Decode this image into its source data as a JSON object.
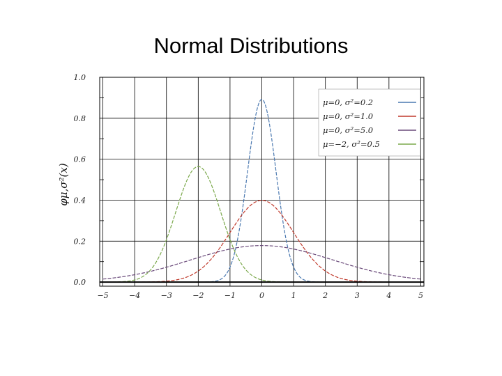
{
  "slide": {
    "title": "Normal Distributions"
  },
  "chart_data": {
    "type": "line",
    "title": "",
    "xlabel": "",
    "ylabel": "φμ,σ²(x)",
    "xlim": [
      -5.1,
      5.1
    ],
    "ylim": [
      -0.02,
      1.0
    ],
    "grid": true,
    "legend_position": "top-right",
    "x_ticks": [
      -5,
      -4,
      -3,
      -2,
      -1,
      0,
      1,
      2,
      3,
      4,
      5
    ],
    "x_tick_labels": [
      "−5",
      "−4",
      "−3",
      "−2",
      "−1",
      "0",
      "1",
      "2",
      "3",
      "4",
      "5"
    ],
    "y_ticks": [
      0.0,
      0.2,
      0.4,
      0.6,
      0.8,
      1.0
    ],
    "y_tick_labels": [
      "0.0",
      "0.2",
      "0.4",
      "0.6",
      "0.8",
      "1.0"
    ],
    "series": [
      {
        "name": "μ=0,    σ²=0.2",
        "mu": 0,
        "variance": 0.2,
        "color": "#4a78b0"
      },
      {
        "name": "μ=0,    σ²=1.0",
        "mu": 0,
        "variance": 1.0,
        "color": "#c0392b"
      },
      {
        "name": "μ=0,    σ²=5.0",
        "mu": 0,
        "variance": 5.0,
        "color": "#6a4a7a"
      },
      {
        "name": "μ=−2, σ²=0.5",
        "mu": -2,
        "variance": 0.5,
        "color": "#7aa84a"
      }
    ]
  }
}
